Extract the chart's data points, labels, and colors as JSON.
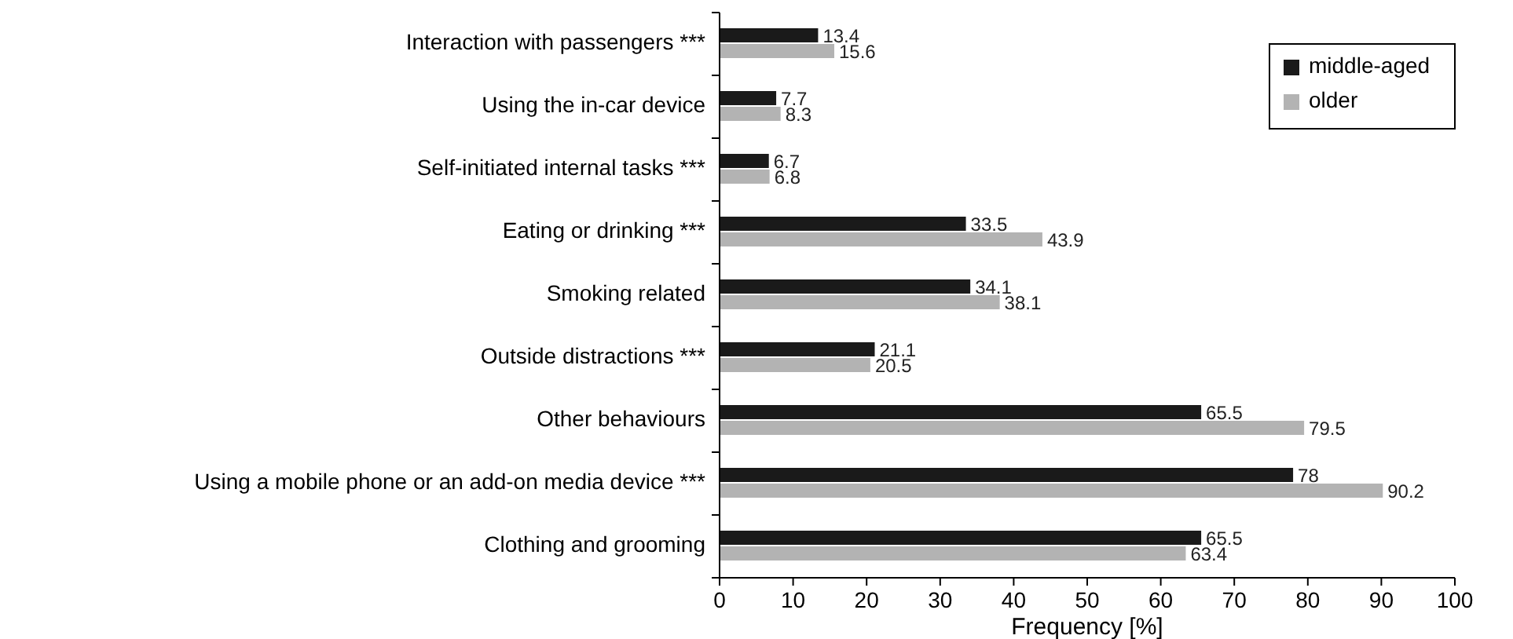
{
  "chart_data": {
    "type": "bar",
    "orientation": "horizontal",
    "xlabel": "Frequency [%]",
    "categories": [
      "Interaction with passengers ***",
      "Using the in-car device",
      "Self-initiated internal tasks ***",
      "Eating or drinking ***",
      "Smoking related",
      "Outside distractions ***",
      "Other behaviours",
      "Using a mobile phone or an add-on media device ***",
      "Clothing and grooming"
    ],
    "series": [
      {
        "name": "middle-aged",
        "color": "#1a1a1a",
        "values": [
          13.4,
          7.7,
          6.7,
          33.5,
          34.1,
          21.1,
          65.5,
          78,
          65.5
        ]
      },
      {
        "name": "older",
        "color": "#b3b3b3",
        "values": [
          15.6,
          8.3,
          6.8,
          43.9,
          38.1,
          20.5,
          79.5,
          90.2,
          63.4
        ]
      }
    ],
    "xlim": [
      0,
      100
    ],
    "xticks": [
      0,
      10,
      20,
      30,
      40,
      50,
      60,
      70,
      80,
      90,
      100
    ],
    "data_labels": true,
    "legend": "top right",
    "grid": false
  }
}
